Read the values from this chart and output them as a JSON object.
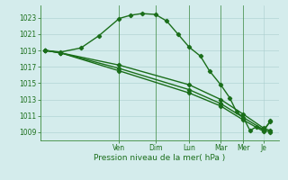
{
  "background_color": "#d4ecec",
  "grid_color": "#aacece",
  "line_color": "#1a6e1a",
  "marker_color": "#1a6e1a",
  "xlabel": "Pression niveau de la mer( hPa )",
  "ylim": [
    1008.0,
    1024.5
  ],
  "yticks": [
    1009,
    1011,
    1013,
    1015,
    1017,
    1019,
    1021,
    1023
  ],
  "x_day_labels": [
    "Ven",
    "Dim",
    "Lun",
    "Mar",
    "Mer",
    "Je"
  ],
  "x_day_positions": [
    0.33,
    0.49,
    0.64,
    0.78,
    0.88,
    0.97
  ],
  "series1_x": [
    0.0,
    0.07,
    0.16,
    0.24,
    0.33,
    0.38,
    0.43,
    0.49,
    0.54,
    0.59,
    0.64,
    0.69,
    0.73,
    0.78,
    0.82,
    0.85,
    0.88,
    0.91,
    0.94,
    0.97,
    1.0
  ],
  "series1_y": [
    1019.0,
    1018.8,
    1019.3,
    1020.8,
    1022.9,
    1023.3,
    1023.5,
    1023.4,
    1022.6,
    1021.0,
    1019.4,
    1018.3,
    1016.5,
    1014.8,
    1013.2,
    1011.5,
    1010.8,
    1009.2,
    1009.7,
    1009.3,
    1010.3
  ],
  "series2_x": [
    0.0,
    0.07,
    0.33,
    0.64,
    0.78,
    0.88,
    0.97,
    1.0
  ],
  "series2_y": [
    1019.0,
    1018.7,
    1017.2,
    1014.8,
    1013.0,
    1011.2,
    1009.5,
    1009.2
  ],
  "series3_x": [
    0.0,
    0.07,
    0.33,
    0.64,
    0.78,
    0.88,
    0.97,
    1.0
  ],
  "series3_y": [
    1019.0,
    1018.7,
    1016.8,
    1014.2,
    1012.5,
    1010.8,
    1009.3,
    1009.0
  ],
  "series4_x": [
    0.0,
    0.07,
    0.33,
    0.64,
    0.78,
    0.88,
    0.97,
    1.0
  ],
  "series4_y": [
    1019.0,
    1018.7,
    1016.5,
    1013.8,
    1012.2,
    1010.5,
    1009.1,
    1010.4
  ]
}
